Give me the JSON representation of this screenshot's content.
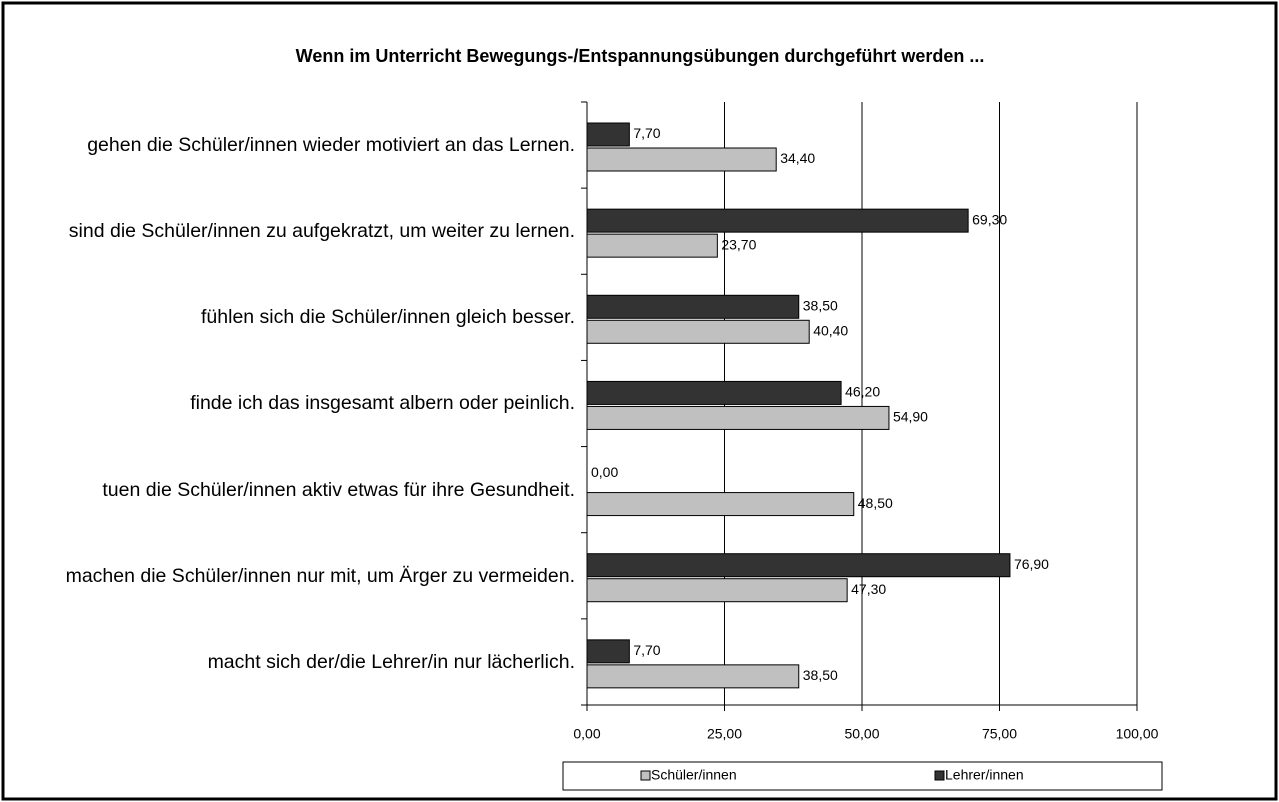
{
  "chart_data": {
    "type": "hbar",
    "title": "Wenn im Unterricht Bewegungs-/Entspannungsübungen durchgeführt werden ...",
    "categories": [
      "gehen die Schüler/innen wieder motiviert an das Lernen.",
      "sind die Schüler/innen zu aufgekratzt, um weiter zu lernen.",
      "fühlen sich die Schüler/innen gleich besser.",
      "finde ich das insgesamt albern oder peinlich.",
      "tuen die Schüler/innen aktiv etwas für ihre Gesundheit.",
      "machen die Schüler/innen nur mit, um Ärger zu vermeiden.",
      "macht sich der/die Lehrer/in nur lächerlich."
    ],
    "series": [
      {
        "name": "Schüler/innen",
        "color": "#c0c0c0",
        "values": [
          34.4,
          23.7,
          40.4,
          54.9,
          48.5,
          47.3,
          38.5
        ],
        "value_labels": [
          "34,40",
          "23,70",
          "40,40",
          "54,90",
          "48,50",
          "47,30",
          "38,50"
        ]
      },
      {
        "name": "Lehrer/innen",
        "color": "#333333",
        "values": [
          7.7,
          69.3,
          38.5,
          46.2,
          0,
          76.9,
          7.7
        ],
        "value_labels": [
          "7,70",
          "69,30",
          "38,50",
          "46,20",
          "0,00",
          "76,90",
          "7,70"
        ]
      }
    ],
    "xlim": [
      0,
      100
    ],
    "xticks": [
      {
        "value": 0,
        "label": "0,00"
      },
      {
        "value": 25,
        "label": "25,00"
      },
      {
        "value": 50,
        "label": "50,00"
      },
      {
        "value": 75,
        "label": "75,00"
      },
      {
        "value": 100,
        "label": "100,00"
      }
    ],
    "grid": true,
    "legend": "bottom"
  }
}
